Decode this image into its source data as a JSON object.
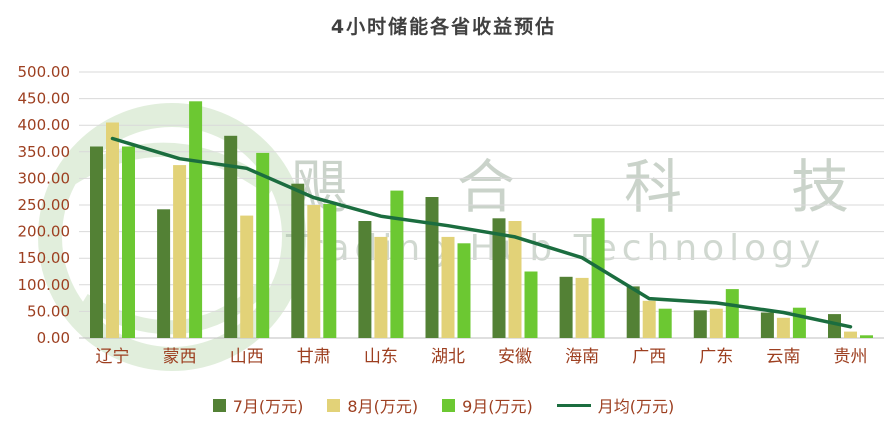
{
  "watermark": {
    "cn": "飓合科技",
    "en": "Trading Hub Technology"
  },
  "chart_data": {
    "type": "bar",
    "title": "4小时储能各省收益预估",
    "categories": [
      "辽宁",
      "蒙西",
      "山西",
      "甘肃",
      "山东",
      "湖北",
      "安徽",
      "海南",
      "广西",
      "广东",
      "云南",
      "贵州"
    ],
    "series": [
      {
        "name": "7月(万元)",
        "type": "bar",
        "color": "#538135",
        "values": [
          360,
          242,
          380,
          290,
          220,
          265,
          225,
          115,
          97,
          52,
          48,
          45
        ]
      },
      {
        "name": "8月(万元)",
        "type": "bar",
        "color": "#e2d278",
        "values": [
          405,
          325,
          230,
          250,
          190,
          190,
          220,
          113,
          70,
          55,
          38,
          12
        ]
      },
      {
        "name": "9月(万元)",
        "type": "bar",
        "color": "#6cc832",
        "values": [
          360,
          445,
          348,
          252,
          277,
          178,
          125,
          225,
          55,
          92,
          57,
          5
        ]
      },
      {
        "name": "月均(万元)",
        "type": "line",
        "color": "#1b6d3f",
        "values": [
          375,
          337,
          319,
          264,
          229,
          211,
          190,
          151,
          74,
          66,
          48,
          21
        ]
      }
    ],
    "xlabel": "",
    "ylabel": "",
    "ylim": [
      0,
      500
    ],
    "ytick_step": 50,
    "ytick_format": "0.00",
    "grid": true,
    "legend_position": "bottom",
    "axis_label_color": "#9d3f20",
    "grid_color": "#d9d9d9",
    "axis_line_color": "#bfbfbf",
    "title_color": "#404040"
  }
}
